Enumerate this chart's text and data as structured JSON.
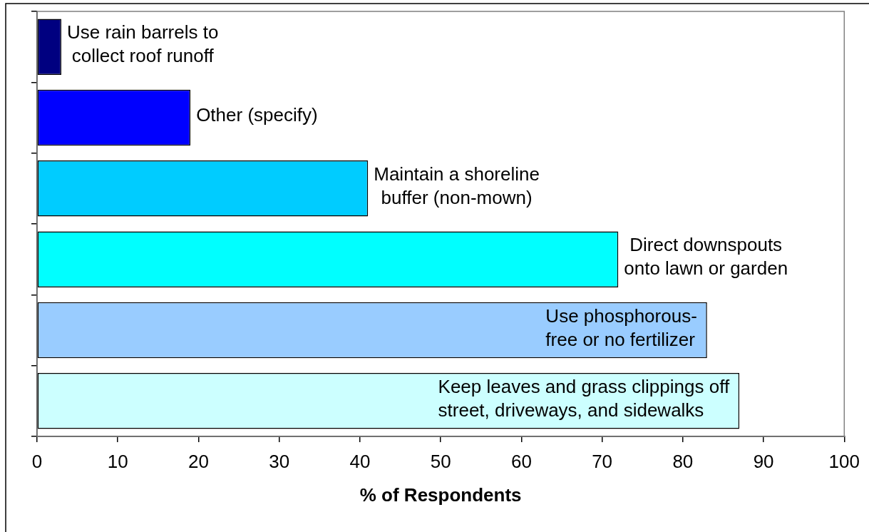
{
  "chart_data": {
    "type": "bar",
    "orientation": "horizontal",
    "xlabel": "% of Respondents",
    "categories": [
      "Use rain barrels to\ncollect roof runoff",
      "Other (specify)",
      "Maintain a shoreline\nbuffer (non-mown)",
      "Direct downspouts\nonto lawn or garden",
      "Use phosphorous-\nfree or no fertilizer",
      "Keep leaves and grass clippings off\nstreet, driveways, and sidewalks"
    ],
    "values": [
      3,
      19,
      41,
      72,
      83,
      87
    ],
    "colors": [
      "#000080",
      "#0000ff",
      "#00ccff",
      "#00ffff",
      "#99ccff",
      "#ccffff"
    ],
    "xlim": [
      0,
      100
    ],
    "xticks": [
      0,
      10,
      20,
      30,
      40,
      50,
      60,
      70,
      80,
      90,
      100
    ]
  }
}
